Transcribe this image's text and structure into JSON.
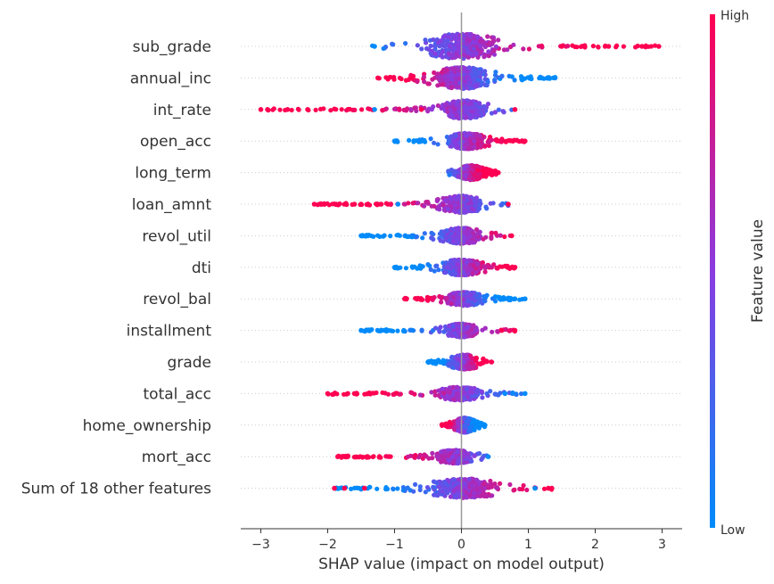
{
  "chart_data": {
    "type": "scatter",
    "subtype": "shap-beeswarm",
    "title": "",
    "xlabel": "SHAP value (impact on model output)",
    "ylabel": "",
    "xlim": [
      -3.3,
      3.3
    ],
    "xticks": [
      -3,
      -2,
      -1,
      0,
      1,
      2,
      3
    ],
    "xtick_labels": [
      "−3",
      "−2",
      "−1",
      "0",
      "1",
      "2",
      "3"
    ],
    "grid": false,
    "colorbar": {
      "label": "Feature value",
      "high_label": "High",
      "low_label": "Low",
      "low_color": "#008bfb",
      "high_color": "#ff0052"
    },
    "features": [
      {
        "name": "sub_grade",
        "min": -1.35,
        "max": 3.0,
        "core": [
          -0.9,
          0.9
        ],
        "sign": 1,
        "width": 1.0,
        "outliers": [
          {
            "x": 1.5,
            "c": "high"
          },
          {
            "x": 2.2,
            "c": "high"
          },
          {
            "x": 2.7,
            "c": "high"
          },
          {
            "x": 2.95,
            "c": "high"
          },
          {
            "x": -1.3,
            "c": "low"
          }
        ]
      },
      {
        "name": "annual_inc",
        "min": -1.25,
        "max": 1.4,
        "core": [
          -0.7,
          0.7
        ],
        "sign": -1,
        "width": 0.85,
        "outliers": [
          {
            "x": 1.4,
            "c": "low"
          },
          {
            "x": 1.2,
            "c": "low"
          },
          {
            "x": -1.25,
            "c": "high"
          }
        ]
      },
      {
        "name": "int_rate",
        "min": -3.0,
        "max": 0.8,
        "core": [
          -0.5,
          0.6
        ],
        "sign": -1,
        "width": 0.7,
        "outliers": [
          {
            "x": -3.0,
            "c": "high"
          },
          {
            "x": -2.9,
            "c": "high"
          },
          {
            "x": -2.6,
            "c": "high"
          },
          {
            "x": -2.3,
            "c": "high"
          },
          {
            "x": -1.3,
            "c": "low"
          },
          {
            "x": -0.6,
            "c": "high"
          },
          {
            "x": 0.8,
            "c": "high"
          }
        ]
      },
      {
        "name": "open_acc",
        "min": -1.0,
        "max": 0.95,
        "core": [
          -0.4,
          0.55
        ],
        "sign": 1,
        "width": 0.6,
        "outliers": [
          {
            "x": -1.0,
            "c": "low"
          },
          {
            "x": 0.95,
            "c": "high"
          }
        ]
      },
      {
        "name": "long_term",
        "min": -0.2,
        "max": 0.55,
        "core": [
          -0.15,
          0.45
        ],
        "sign": 1,
        "width": 0.55,
        "outliers": [
          {
            "x": 0.55,
            "c": "high"
          }
        ]
      },
      {
        "name": "loan_amnt",
        "min": -2.2,
        "max": 0.7,
        "core": [
          -0.5,
          0.5
        ],
        "sign": -1,
        "width": 0.65,
        "outliers": [
          {
            "x": -2.2,
            "c": "high"
          },
          {
            "x": -2.1,
            "c": "high"
          },
          {
            "x": -1.6,
            "c": "high"
          },
          {
            "x": -1.5,
            "c": "high"
          },
          {
            "x": -1.4,
            "c": "high"
          },
          {
            "x": -1.2,
            "c": "high"
          },
          {
            "x": -1.1,
            "c": "high"
          },
          {
            "x": -0.95,
            "c": "low"
          },
          {
            "x": 0.7,
            "c": "high"
          }
        ]
      },
      {
        "name": "revol_util",
        "min": -1.5,
        "max": 0.75,
        "core": [
          -0.5,
          0.5
        ],
        "sign": 1,
        "width": 0.6,
        "outliers": [
          {
            "x": -1.5,
            "c": "low"
          },
          {
            "x": -1.4,
            "c": "low"
          },
          {
            "x": 0.75,
            "c": "high"
          }
        ]
      },
      {
        "name": "dti",
        "min": -1.0,
        "max": 0.8,
        "core": [
          -0.5,
          0.5
        ],
        "sign": 1,
        "width": 0.6,
        "outliers": [
          {
            "x": -1.0,
            "c": "low"
          },
          {
            "x": 0.8,
            "c": "high"
          }
        ]
      },
      {
        "name": "revol_bal",
        "min": -0.85,
        "max": 0.95,
        "core": [
          -0.4,
          0.5
        ],
        "sign": -1,
        "width": 0.5,
        "outliers": [
          {
            "x": -0.85,
            "c": "high"
          },
          {
            "x": 0.95,
            "c": "low"
          },
          {
            "x": 0.8,
            "c": "low"
          }
        ]
      },
      {
        "name": "installment",
        "min": -1.5,
        "max": 0.8,
        "core": [
          -0.4,
          0.4
        ],
        "sign": 1,
        "width": 0.5,
        "outliers": [
          {
            "x": -1.5,
            "c": "low"
          },
          {
            "x": -1.2,
            "c": "low"
          },
          {
            "x": -1.1,
            "c": "low"
          },
          {
            "x": 0.8,
            "c": "high"
          },
          {
            "x": 0.6,
            "c": "high"
          }
        ]
      },
      {
        "name": "grade",
        "min": -0.5,
        "max": 0.45,
        "core": [
          -0.3,
          0.4
        ],
        "sign": 1,
        "width": 0.55,
        "outliers": [
          {
            "x": -0.5,
            "c": "low"
          },
          {
            "x": 0.45,
            "c": "high"
          }
        ]
      },
      {
        "name": "total_acc",
        "min": -2.0,
        "max": 0.95,
        "core": [
          -0.5,
          0.45
        ],
        "sign": -1,
        "width": 0.5,
        "outliers": [
          {
            "x": -2.0,
            "c": "high"
          },
          {
            "x": -1.7,
            "c": "high"
          },
          {
            "x": -1.6,
            "c": "high"
          },
          {
            "x": -1.4,
            "c": "high"
          },
          {
            "x": 0.95,
            "c": "low"
          },
          {
            "x": 0.65,
            "c": "low"
          }
        ]
      },
      {
        "name": "home_ownership",
        "min": -0.3,
        "max": 0.35,
        "core": [
          -0.2,
          0.3
        ],
        "sign": -1,
        "width": 0.55,
        "outliers": [
          {
            "x": 0.35,
            "c": "low"
          }
        ]
      },
      {
        "name": "mort_acc",
        "min": -1.85,
        "max": 0.4,
        "core": [
          -0.55,
          0.35
        ],
        "sign": -1,
        "width": 0.5,
        "outliers": [
          {
            "x": -1.85,
            "c": "high"
          },
          {
            "x": -1.8,
            "c": "high"
          },
          {
            "x": -1.7,
            "c": "high"
          },
          {
            "x": 0.4,
            "c": "low"
          }
        ]
      },
      {
        "name": "Sum of 18 other features",
        "min": -1.9,
        "max": 1.35,
        "core": [
          -0.8,
          0.9
        ],
        "sign": 1,
        "width": 0.75,
        "outliers": [
          {
            "x": -1.9,
            "c": "high"
          },
          {
            "x": -1.75,
            "c": "high"
          },
          {
            "x": -1.45,
            "c": "high"
          },
          {
            "x": 1.1,
            "c": "low"
          },
          {
            "x": 1.3,
            "c": "high"
          },
          {
            "x": 1.35,
            "c": "high"
          }
        ]
      }
    ]
  }
}
